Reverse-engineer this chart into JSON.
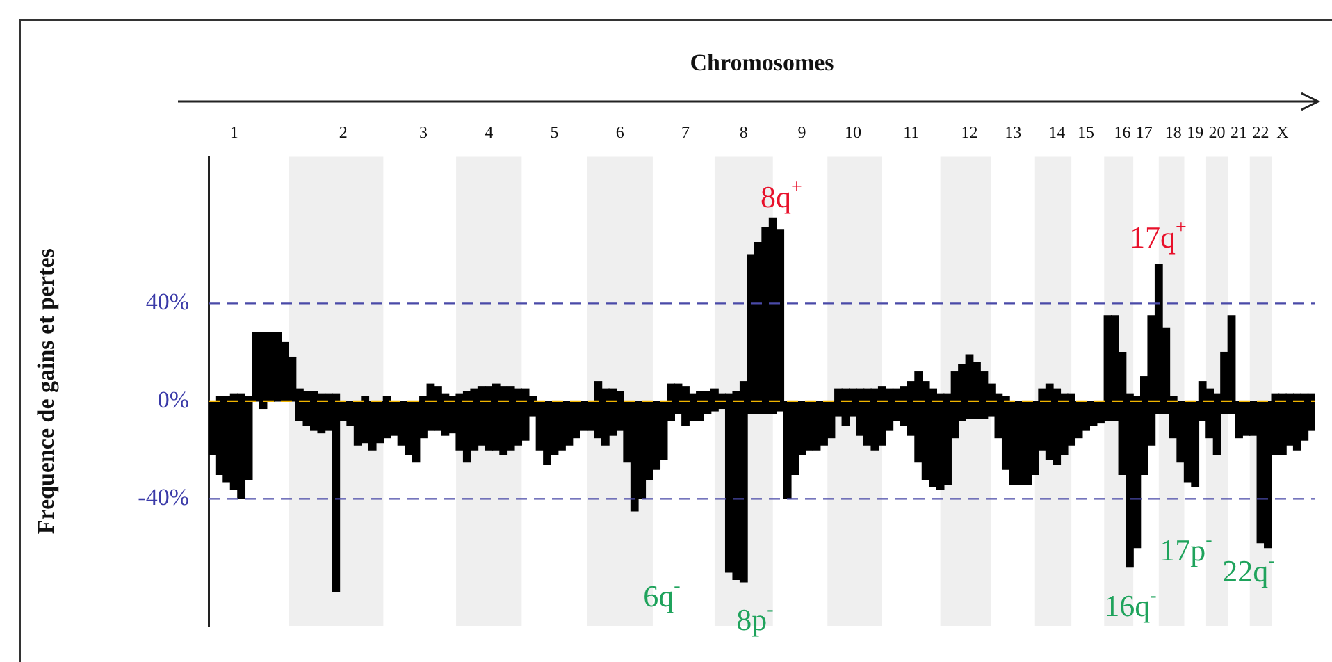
{
  "chart_data": {
    "type": "bar",
    "xlabel": "Chromosomes",
    "ylabel": "Frequence de gains et pertes",
    "categories": [
      null,
      null,
      null,
      "1",
      null,
      null,
      null,
      null,
      null,
      null,
      null,
      null,
      null,
      null,
      null,
      null,
      null,
      null,
      "2",
      null,
      null,
      null,
      null,
      null,
      null,
      null,
      null,
      null,
      null,
      "3",
      null,
      null,
      null,
      null,
      null,
      null,
      null,
      null,
      "4",
      null,
      null,
      null,
      null,
      null,
      null,
      null,
      null,
      "5",
      null,
      null,
      null,
      null,
      null,
      null,
      null,
      null,
      "6",
      null,
      null,
      null,
      null,
      null,
      null,
      null,
      null,
      "7",
      null,
      null,
      null,
      null,
      null,
      null,
      null,
      "8",
      null,
      null,
      null,
      null,
      null,
      null,
      null,
      "9",
      null,
      null,
      null,
      null,
      null,
      null,
      "10",
      null,
      null,
      null,
      null,
      null,
      null,
      null,
      "11",
      null,
      null,
      null,
      null,
      null,
      null,
      null,
      "12",
      null,
      null,
      null,
      null,
      null,
      "13",
      null,
      null,
      null,
      null,
      null,
      "14",
      null,
      null,
      null,
      "15",
      null,
      null,
      null,
      null,
      "16",
      null,
      null,
      "17",
      null,
      null,
      null,
      "18",
      null,
      null,
      "19",
      null,
      null,
      "20",
      null,
      null,
      "21",
      null,
      null,
      "22",
      null,
      null,
      "X",
      null,
      null,
      null,
      null
    ],
    "stacked": true,
    "series": [
      {
        "color": "#000000",
        "values": [
          0,
          2,
          2,
          3,
          3,
          2,
          28,
          28,
          28,
          28,
          24,
          18,
          5,
          4,
          4,
          3,
          3,
          3,
          0,
          0,
          0,
          2,
          0,
          0,
          2,
          0,
          0,
          0,
          0,
          2,
          7,
          6,
          3,
          2,
          3,
          4,
          5,
          6,
          6,
          7,
          6,
          6,
          5,
          5,
          2,
          0,
          0,
          0,
          0,
          0,
          0,
          0,
          0,
          8,
          5,
          5,
          4,
          0,
          0,
          0,
          0,
          0,
          0,
          7,
          7,
          6,
          3,
          4,
          4,
          5,
          3,
          3,
          4,
          8,
          60,
          65,
          71,
          75,
          70,
          0,
          0,
          0,
          0,
          0,
          0,
          0,
          5,
          5,
          5,
          5,
          5,
          5,
          6,
          5,
          5,
          6,
          8,
          12,
          8,
          5,
          3,
          3,
          12,
          15,
          19,
          16,
          12,
          7,
          3,
          2,
          0,
          0,
          0,
          0,
          5,
          7,
          5,
          3,
          3,
          0,
          0,
          0,
          0,
          35,
          35,
          20,
          3,
          2,
          10,
          35,
          56,
          30,
          2,
          0,
          0,
          0,
          8,
          5,
          3,
          20,
          35,
          0,
          0,
          0,
          0,
          0,
          3,
          3,
          3,
          3,
          3,
          3
        ]
      },
      {
        "color": "#000000",
        "values": [
          -22,
          -30,
          -33,
          -36,
          -40,
          -32,
          0,
          -3,
          0,
          0,
          0,
          0,
          -8,
          -10,
          -12,
          -13,
          -12,
          -78,
          -8,
          -10,
          -18,
          -17,
          -20,
          -17,
          -15,
          -14,
          -18,
          -22,
          -25,
          -15,
          -12,
          -12,
          -14,
          -13,
          -20,
          -25,
          -20,
          -18,
          -20,
          -20,
          -22,
          -20,
          -18,
          -16,
          -6,
          -20,
          -26,
          -22,
          -20,
          -18,
          -15,
          -12,
          -12,
          -15,
          -18,
          -14,
          -12,
          -25,
          -45,
          -40,
          -32,
          -28,
          -24,
          -8,
          -5,
          -10,
          -8,
          -8,
          -5,
          -4,
          -3,
          -70,
          -73,
          -74,
          -5,
          -5,
          -5,
          -5,
          -4,
          -40,
          -30,
          -22,
          -20,
          -20,
          -18,
          -15,
          -6,
          -10,
          -6,
          -14,
          -18,
          -20,
          -18,
          -12,
          -8,
          -10,
          -14,
          -25,
          -32,
          -35,
          -36,
          -34,
          -15,
          -8,
          -7,
          -7,
          -7,
          -6,
          -15,
          -28,
          -34,
          -34,
          -34,
          -30,
          -20,
          -24,
          -26,
          -22,
          -18,
          -15,
          -12,
          -10,
          -9,
          -8,
          -8,
          -30,
          -68,
          -60,
          -30,
          -18,
          -5,
          -5,
          -15,
          -25,
          -33,
          -35,
          -8,
          -15,
          -22,
          -5,
          -5,
          -15,
          -14,
          -14,
          -58,
          -60,
          -22,
          -22,
          -18,
          -20,
          -16,
          -12
        ]
      }
    ],
    "ylim": [
      -92,
      100
    ],
    "yticks": [
      {
        "value": 40,
        "label": "40%"
      },
      {
        "value": 0,
        "label": "0%"
      },
      {
        "value": -40,
        "label": "-40%"
      }
    ],
    "grid": false,
    "legend": false,
    "ref_lines": [
      {
        "axis": "y",
        "value": 40,
        "color": "#4a4aa8",
        "line_style": "dashed"
      },
      {
        "axis": "y",
        "value": -40,
        "color": "#4a4aa8",
        "line_style": "dashed"
      },
      {
        "axis": "y",
        "value": 0,
        "color": "#f0b400",
        "line_style": "dashed"
      }
    ],
    "annotations": [
      "8q$^{+}$",
      "17q$^{+}$",
      "6q$^{-}$",
      "8p$^{-}$",
      "16q$^{-}$",
      "17p$^{-}$",
      "22q$^{-}$"
    ]
  }
}
